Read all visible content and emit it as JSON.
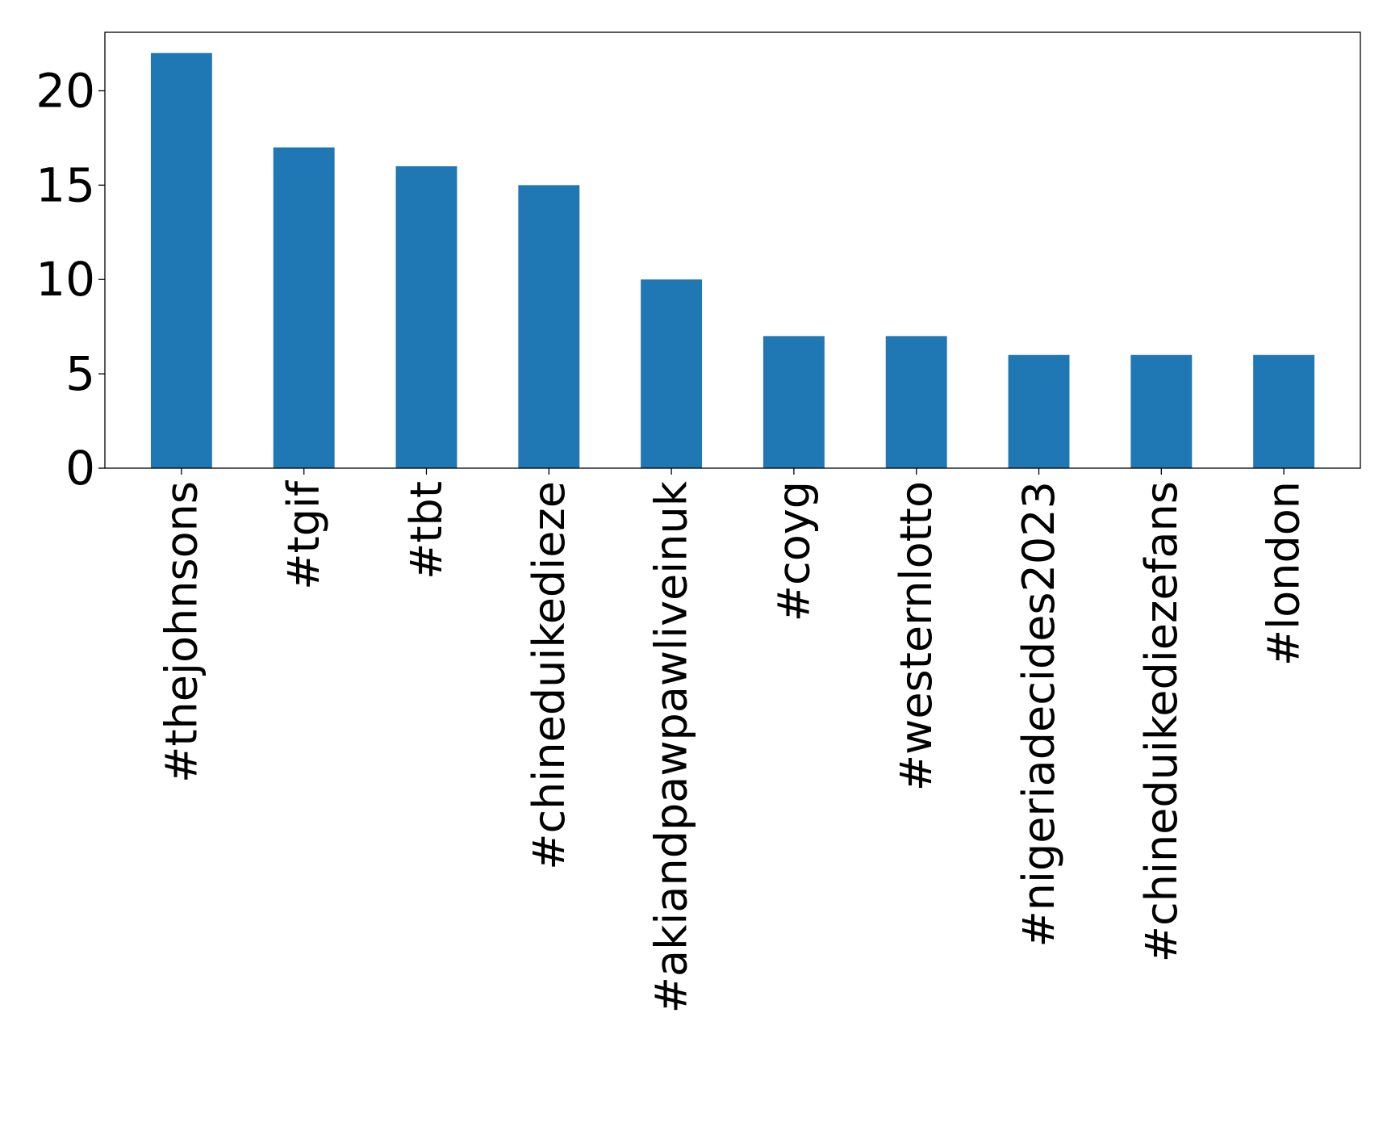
{
  "chart_data": {
    "type": "bar",
    "categories": [
      "#thejohnsons",
      "#tgif",
      "#tbt",
      "#chineduikedieze",
      "#akiandpawpawliveinuk",
      "#coyg",
      "#westernlotto",
      "#nigeriadecides2023",
      "#chineduikediezefans",
      "#london"
    ],
    "values": [
      22,
      17,
      16,
      15,
      10,
      7,
      7,
      6,
      6,
      6
    ],
    "title": "",
    "xlabel": "",
    "ylabel": "",
    "ylim": [
      0,
      23.1
    ],
    "yticks": [
      0,
      5,
      10,
      15,
      20
    ],
    "grid": false,
    "bar_color": "#1f77b4"
  }
}
